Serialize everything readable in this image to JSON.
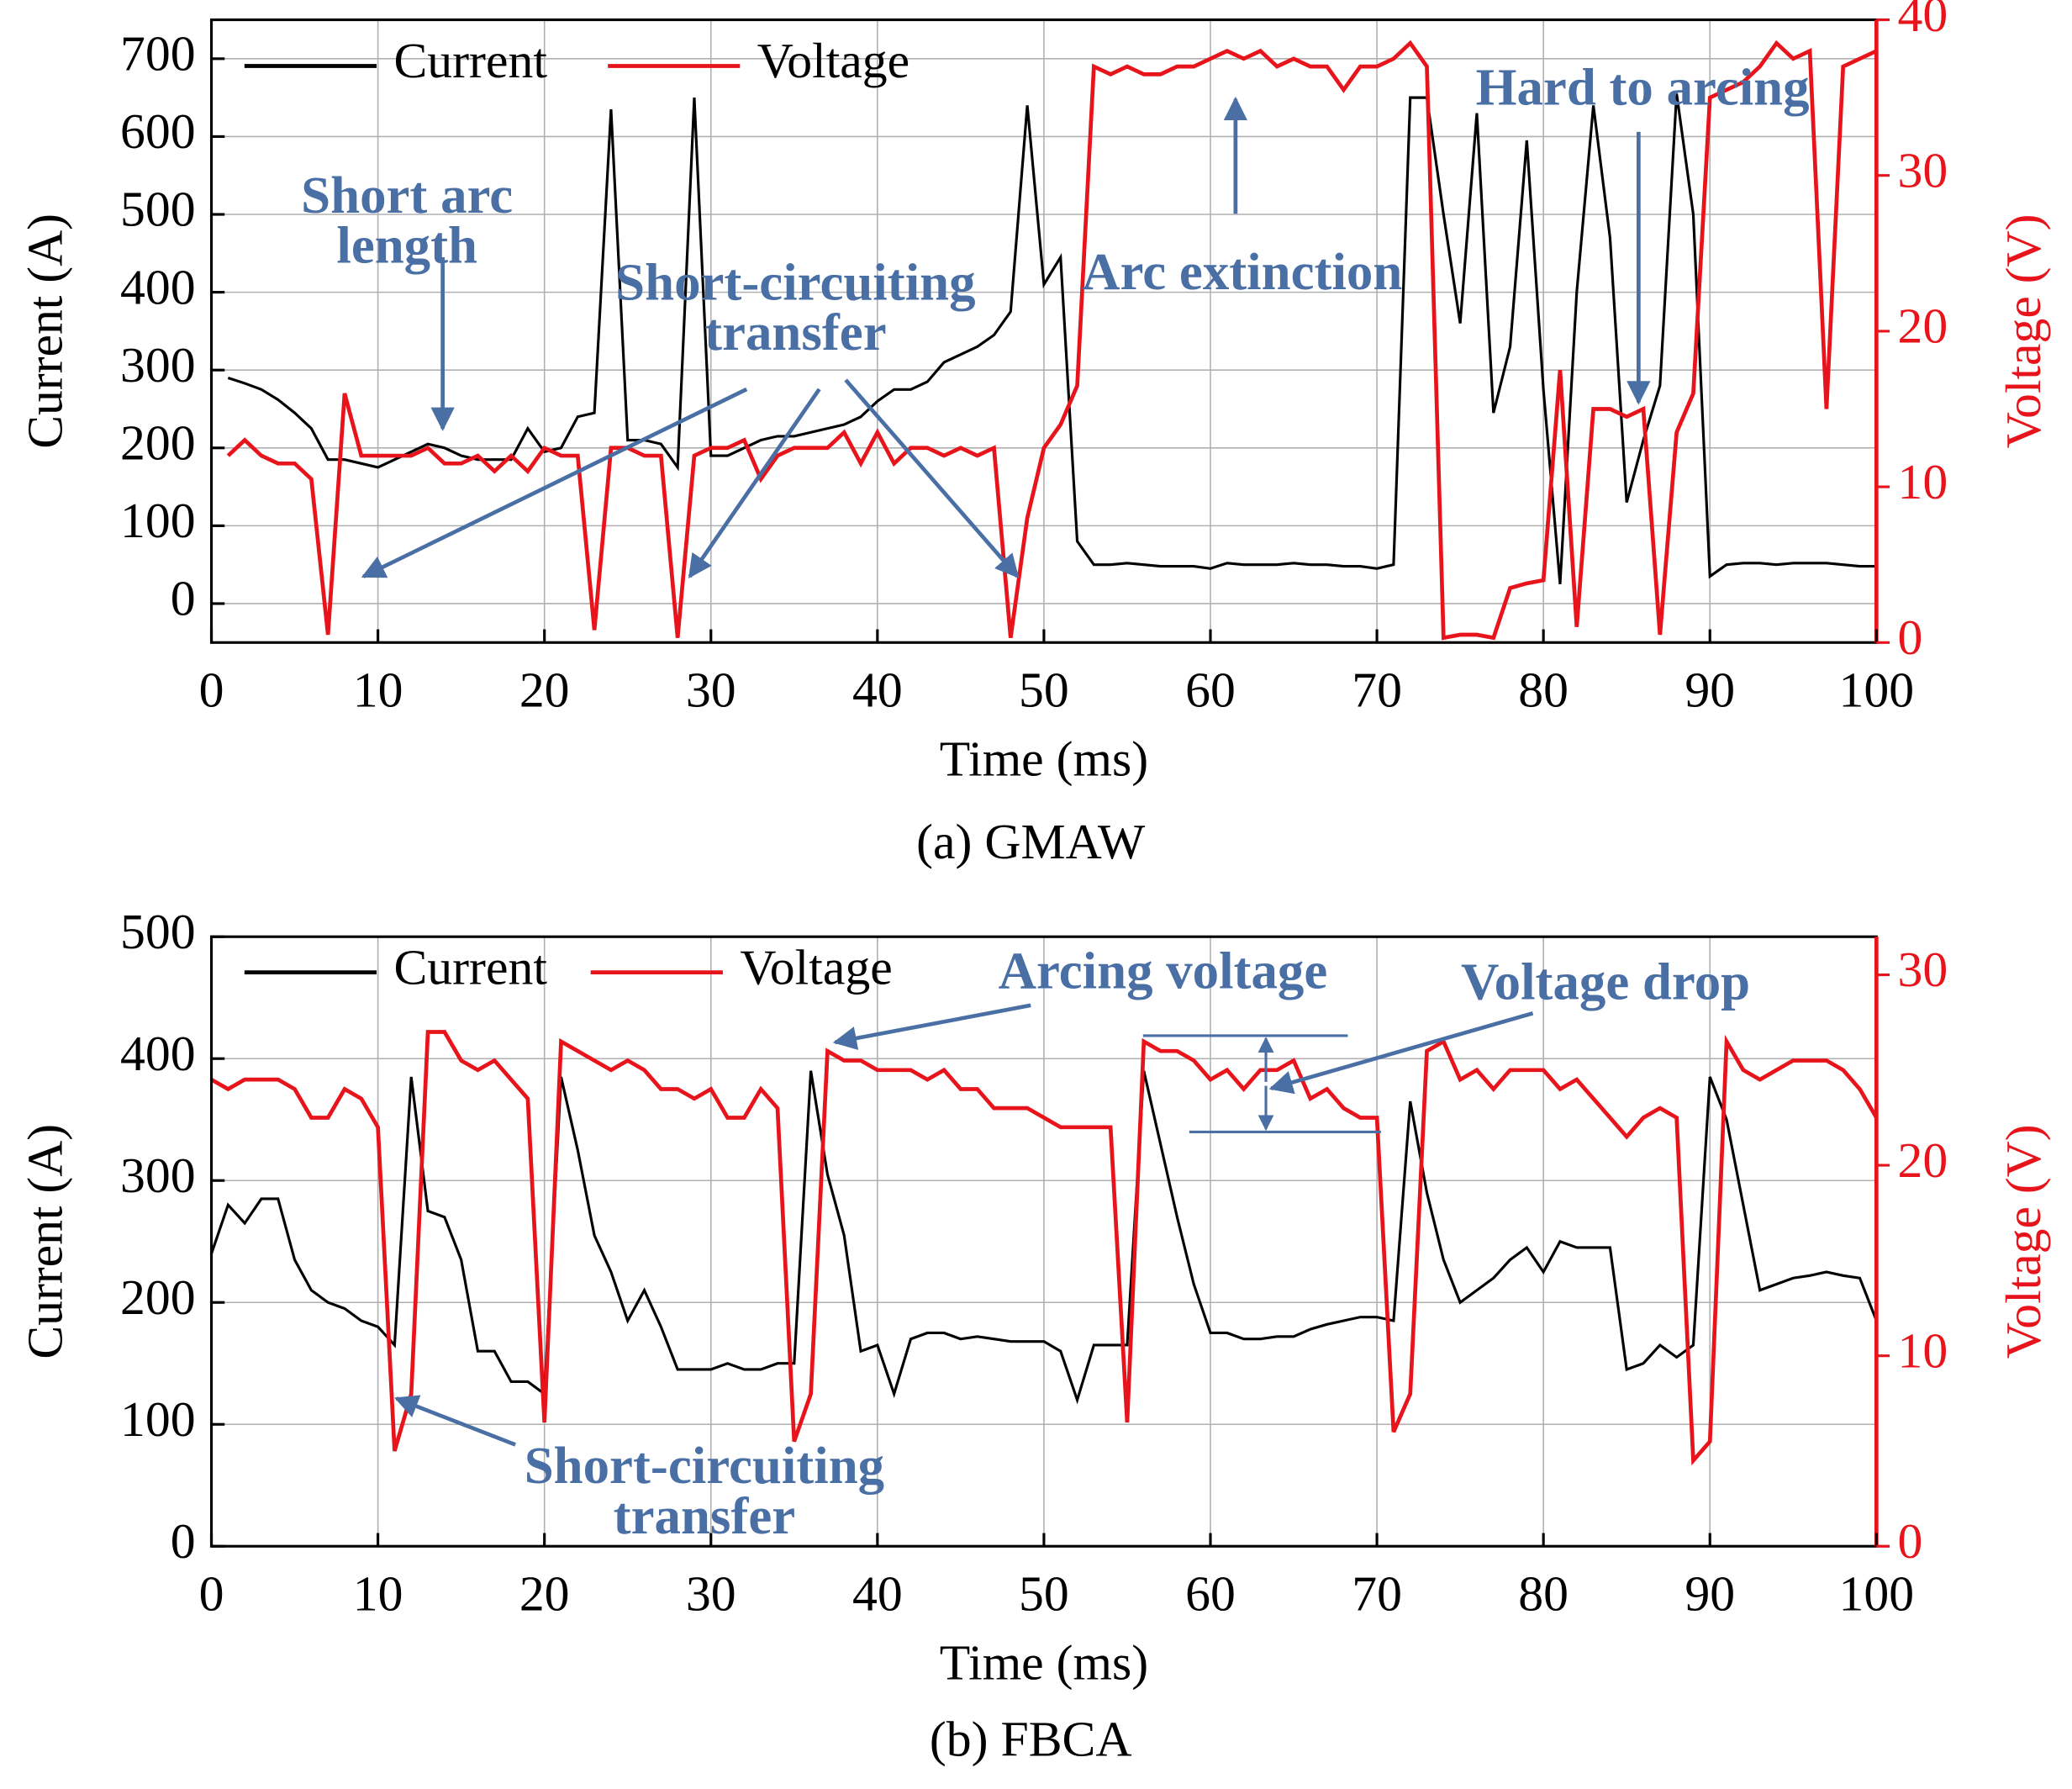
{
  "chart_data": [
    {
      "type": "line",
      "caption": "(a)  GMAW",
      "xlabel": "Time (ms)",
      "ylabel": "Current (A)",
      "y2label": "Voltage (V)",
      "grid": true,
      "legend": "upper left",
      "xlim": [
        0,
        100
      ],
      "xticks": [
        0,
        10,
        20,
        30,
        40,
        50,
        60,
        70,
        80,
        90,
        100
      ],
      "ylim": [
        -50,
        750
      ],
      "yticks": [
        0,
        100,
        200,
        300,
        400,
        500,
        600,
        700
      ],
      "y2lim": [
        0,
        40
      ],
      "y2ticks": [
        0,
        10,
        20,
        30,
        40
      ],
      "x": [
        1,
        2,
        3,
        4,
        5,
        6,
        7,
        8,
        9,
        10,
        11,
        12,
        13,
        14,
        15,
        16,
        17,
        18,
        19,
        20,
        21,
        22,
        23,
        24,
        25,
        26,
        27,
        28,
        29,
        30,
        31,
        32,
        33,
        34,
        35,
        36,
        37,
        38,
        39,
        40,
        41,
        42,
        43,
        44,
        45,
        46,
        47,
        48,
        49,
        50,
        51,
        52,
        53,
        54,
        55,
        56,
        57,
        58,
        59,
        60,
        61,
        62,
        63,
        64,
        65,
        66,
        67,
        68,
        69,
        70,
        71,
        72,
        73,
        74,
        75,
        76,
        77,
        78,
        79,
        80,
        81,
        82,
        83,
        84,
        85,
        86,
        87,
        88,
        89,
        90,
        91,
        92,
        93,
        94,
        95,
        96,
        97,
        98,
        99,
        100
      ],
      "series": [
        {
          "name": "Current",
          "color": "#000000",
          "axis": "y",
          "values": [
            290,
            283,
            275,
            262,
            245,
            225,
            185,
            185,
            180,
            175,
            185,
            195,
            205,
            200,
            190,
            185,
            185,
            185,
            225,
            195,
            200,
            240,
            245,
            635,
            210,
            210,
            205,
            175,
            650,
            190,
            190,
            200,
            210,
            215,
            215,
            220,
            225,
            230,
            240,
            260,
            275,
            275,
            285,
            310,
            320,
            330,
            345,
            375,
            640,
            410,
            445,
            80,
            50,
            50,
            52,
            50,
            48,
            48,
            48,
            45,
            52,
            50,
            50,
            50,
            52,
            50,
            50,
            48,
            48,
            45,
            50,
            650,
            650,
            500,
            360,
            630,
            245,
            330,
            595,
            275,
            25,
            400,
            640,
            470,
            130,
            210,
            280,
            655,
            500,
            35,
            50,
            52,
            52,
            50,
            52,
            52,
            52,
            50,
            48,
            48
          ]
        },
        {
          "name": "Voltage",
          "color": "#e8141c",
          "axis": "y2",
          "values": [
            12,
            13,
            12,
            11.5,
            11.5,
            10.5,
            0.5,
            16,
            12,
            12,
            12,
            12,
            12.5,
            11.5,
            11.5,
            12,
            11,
            12,
            11,
            12.5,
            12,
            12,
            0.8,
            12.5,
            12.5,
            12,
            12,
            0.3,
            12,
            12.5,
            12.5,
            13,
            10.5,
            12,
            12.5,
            12.5,
            12.5,
            13.5,
            11.5,
            13.5,
            11.5,
            12.5,
            12.5,
            12,
            12.5,
            12,
            12.5,
            0.3,
            8,
            12.5,
            14,
            16.5,
            37,
            36.5,
            37,
            36.5,
            36.5,
            37,
            37,
            37.5,
            38,
            37.5,
            38,
            37,
            37.5,
            37,
            37,
            35.5,
            37,
            37,
            37.5,
            38.5,
            37,
            0.3,
            0.5,
            0.5,
            0.3,
            3.5,
            3.8,
            4,
            17.5,
            1,
            15,
            15,
            14.5,
            15,
            0.5,
            13.5,
            16,
            35,
            35.5,
            36,
            37,
            38.5,
            37.5,
            38,
            15,
            37,
            37.5,
            38
          ]
        }
      ],
      "annotations": [
        {
          "text": [
            "Short arc",
            "length"
          ]
        },
        {
          "text": [
            "Short-circuiting",
            "transfer"
          ]
        },
        {
          "text": [
            "Arc extinction"
          ]
        },
        {
          "text": [
            "Hard to arcing"
          ]
        }
      ]
    },
    {
      "type": "line",
      "caption": "(b)  FBCA",
      "xlabel": "Time (ms)",
      "ylabel": "Current (A)",
      "y2label": "Voltage (V)",
      "grid": true,
      "legend": "upper left",
      "xlim": [
        0,
        100
      ],
      "xticks": [
        0,
        10,
        20,
        30,
        40,
        50,
        60,
        70,
        80,
        90,
        100
      ],
      "ylim": [
        0,
        500
      ],
      "yticks": [
        0,
        100,
        200,
        300,
        400,
        500
      ],
      "y2lim": [
        0,
        32
      ],
      "y2ticks": [
        0,
        10,
        20,
        30
      ],
      "x": [
        0,
        1,
        2,
        3,
        4,
        5,
        6,
        7,
        8,
        9,
        10,
        11,
        12,
        13,
        14,
        15,
        16,
        17,
        18,
        19,
        20,
        21,
        22,
        23,
        24,
        25,
        26,
        27,
        28,
        29,
        30,
        31,
        32,
        33,
        34,
        35,
        36,
        37,
        38,
        39,
        40,
        41,
        42,
        43,
        44,
        45,
        46,
        47,
        48,
        49,
        50,
        51,
        52,
        53,
        54,
        55,
        56,
        57,
        58,
        59,
        60,
        61,
        62,
        63,
        64,
        65,
        66,
        67,
        68,
        69,
        70,
        71,
        72,
        73,
        74,
        75,
        76,
        77,
        78,
        79,
        80,
        81,
        82,
        83,
        84,
        85,
        86,
        87,
        88,
        89,
        90,
        91,
        92,
        93,
        94,
        95,
        96,
        97,
        98,
        99,
        100
      ],
      "series": [
        {
          "name": "Current",
          "color": "#000000",
          "axis": "y",
          "values": [
            240,
            280,
            265,
            285,
            285,
            235,
            210,
            200,
            195,
            185,
            180,
            165,
            385,
            275,
            270,
            235,
            160,
            160,
            135,
            135,
            125,
            385,
            325,
            255,
            225,
            185,
            210,
            180,
            145,
            145,
            145,
            150,
            145,
            145,
            150,
            150,
            390,
            305,
            255,
            160,
            165,
            125,
            170,
            175,
            175,
            170,
            172,
            170,
            168,
            168,
            168,
            160,
            120,
            165,
            165,
            165,
            390,
            330,
            270,
            215,
            175,
            175,
            170,
            170,
            172,
            172,
            178,
            182,
            185,
            188,
            188,
            185,
            365,
            290,
            235,
            200,
            210,
            220,
            235,
            245,
            225,
            250,
            245,
            245,
            245,
            145,
            150,
            165,
            155,
            165,
            385,
            350,
            280,
            210,
            215,
            220,
            222,
            225,
            222,
            220,
            185
          ]
        },
        {
          "name": "Voltage",
          "color": "#e8141c",
          "axis": "y2",
          "values": [
            24.5,
            24,
            24.5,
            24.5,
            24.5,
            24,
            22.5,
            22.5,
            24,
            23.5,
            22,
            5,
            8,
            27,
            27,
            25.5,
            25,
            25.5,
            24.5,
            23.5,
            6.5,
            26.5,
            26,
            25.5,
            25,
            25.5,
            25,
            24,
            24,
            23.5,
            24,
            22.5,
            22.5,
            24,
            23,
            5.5,
            8,
            26,
            25.5,
            25.5,
            25,
            25,
            25,
            24.5,
            25,
            24,
            24,
            23,
            23,
            23,
            22.5,
            22,
            22,
            22,
            22,
            6.5,
            26.5,
            26,
            26,
            25.5,
            24.5,
            25,
            24,
            25,
            25,
            25.5,
            23.5,
            24,
            23,
            22.5,
            22.5,
            6,
            8,
            26,
            26.5,
            24.5,
            25,
            24,
            25,
            25,
            25,
            24,
            24.5,
            23.5,
            22.5,
            21.5,
            22.5,
            23,
            22.5,
            4.5,
            5.5,
            26.5,
            25,
            24.5,
            25,
            25.5,
            25.5,
            25.5,
            25,
            24,
            22.5
          ]
        }
      ],
      "annotations": [
        {
          "text": [
            "Arcing voltage"
          ]
        },
        {
          "text": [
            "Voltage drop"
          ]
        },
        {
          "text": [
            "Short-circuiting",
            "transfer"
          ]
        }
      ]
    }
  ]
}
